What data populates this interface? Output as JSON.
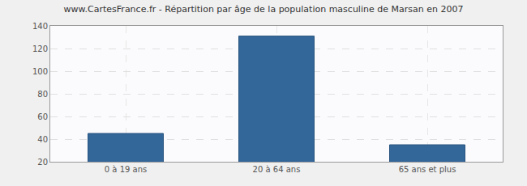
{
  "chart_data": {
    "type": "bar",
    "title": "www.CartesFrance.fr - Répartition par âge de la population masculine de Marsan en 2007",
    "categories": [
      "0 à 19 ans",
      "20 à 64 ans",
      "65 ans et plus"
    ],
    "values": [
      45,
      131,
      35
    ],
    "color": "#336699",
    "ylim": [
      20,
      140
    ],
    "yticks": [
      20,
      40,
      60,
      80,
      100,
      120,
      140
    ],
    "grid": true
  }
}
